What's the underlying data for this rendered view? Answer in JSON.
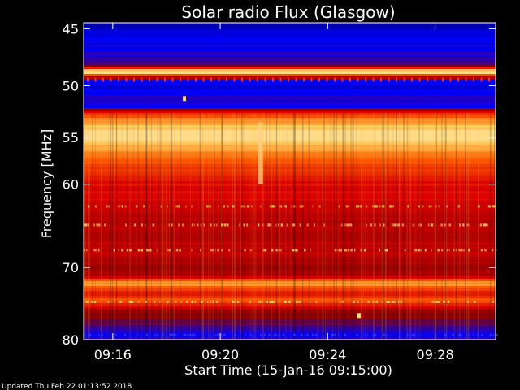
{
  "chart_data": {
    "type": "heatmap",
    "title": "Solar radio Flux (Glasgow)",
    "xlabel": "Start Time (15-Jan-16 09:15:00)",
    "ylabel": "Frequency [MHz]",
    "xlim": [
      "09:14:55",
      "09:30:15"
    ],
    "ylim": [
      80,
      44.5
    ],
    "y_scale": "log",
    "x_ticks": [
      "09:16",
      "09:20",
      "09:24",
      "09:28"
    ],
    "y_ticks": [
      45,
      50,
      55,
      60,
      70,
      80
    ],
    "colormap": [
      "#000080",
      "#0000ff",
      "#8b0000",
      "#dd0000",
      "#ff6000",
      "#ffd060",
      "#ffffff"
    ],
    "intensity_profile": {
      "frequency_mhz": [
        44.5,
        45.5,
        47,
        48.2,
        48.7,
        49.0,
        49.4,
        50.0,
        51.0,
        52.0,
        52.5,
        53.2,
        54.0,
        55.0,
        56.0,
        57.0,
        58.0,
        60.0,
        62.0,
        64.0,
        66.0,
        68.0,
        70.0,
        71.0,
        72.0,
        73.5,
        74.5,
        76.0,
        78.0,
        79.0,
        80.0
      ],
      "level": [
        0.05,
        0.12,
        0.18,
        0.3,
        0.95,
        0.7,
        0.25,
        0.12,
        0.2,
        0.15,
        0.55,
        0.72,
        0.82,
        0.9,
        0.78,
        0.68,
        0.62,
        0.52,
        0.48,
        0.44,
        0.42,
        0.45,
        0.38,
        0.4,
        0.78,
        0.5,
        0.66,
        0.34,
        0.26,
        0.16,
        0.22
      ]
    },
    "features": [
      {
        "kind": "burst",
        "time": "09:21:30",
        "frequency_range_mhz": [
          53.5,
          60
        ]
      },
      {
        "kind": "spot",
        "time": "09:25:10",
        "frequency_mhz": 76.5
      },
      {
        "kind": "spot",
        "time": "09:18:40",
        "frequency_mhz": 51.2
      }
    ]
  },
  "footer": {
    "updated": "Updated Thu Feb 22 01:13:52 2018"
  }
}
